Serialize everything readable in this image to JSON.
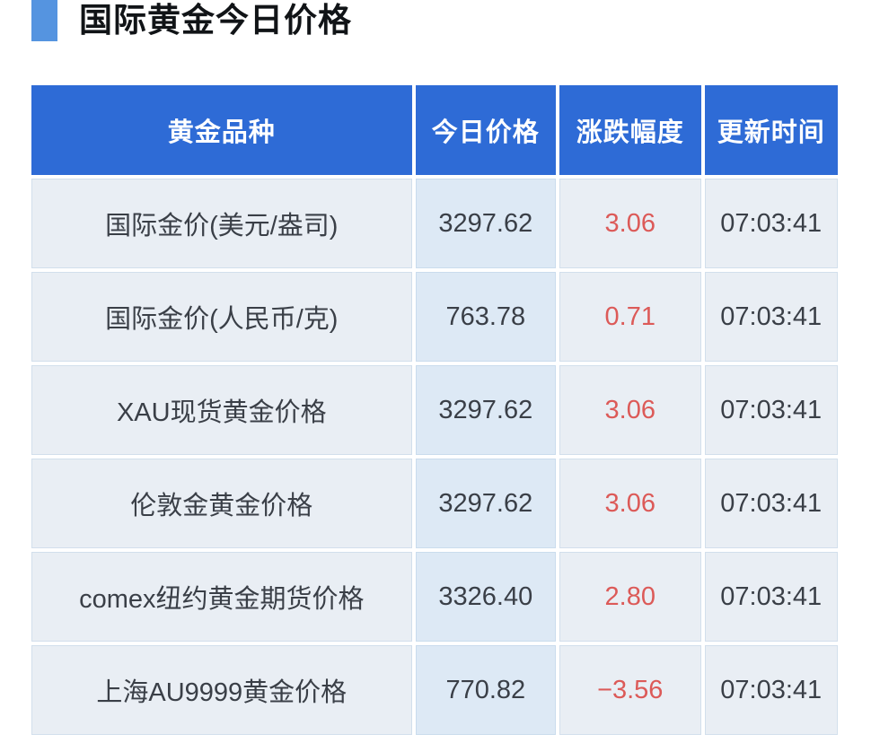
{
  "header": {
    "title": "国际黄金今日价格"
  },
  "colors": {
    "accent_bullet": "#5594e0",
    "table_header_bg": "#2e6bd6",
    "table_header_text": "#ffffff",
    "row_bg": "#e9eef4",
    "price_column_bg": "#dde9f5",
    "change_text": "#dc5a58",
    "body_text": "#3a3f47"
  },
  "table": {
    "columns": [
      "黄金品种",
      "今日价格",
      "涨跌幅度",
      "更新时间"
    ],
    "rows": [
      {
        "variety": "国际金价(美元/盎司)",
        "price": "3297.62",
        "change": "3.06",
        "time": "07:03:41"
      },
      {
        "variety": "国际金价(人民币/克)",
        "price": "763.78",
        "change": "0.71",
        "time": "07:03:41"
      },
      {
        "variety": "XAU现货黄金价格",
        "price": "3297.62",
        "change": "3.06",
        "time": "07:03:41"
      },
      {
        "variety": "伦敦金黄金价格",
        "price": "3297.62",
        "change": "3.06",
        "time": "07:03:41"
      },
      {
        "variety": "comex纽约黄金期货价格",
        "price": "3326.40",
        "change": "2.80",
        "time": "07:03:41"
      },
      {
        "variety": "上海AU9999黄金价格",
        "price": "770.82",
        "change": "−3.56",
        "time": "07:03:41"
      }
    ]
  },
  "chart_data": {
    "type": "table",
    "title": "国际黄金今日价格",
    "columns": [
      "黄金品种",
      "今日价格",
      "涨跌幅度",
      "更新时间"
    ],
    "rows": [
      [
        "国际金价(美元/盎司)",
        3297.62,
        3.06,
        "07:03:41"
      ],
      [
        "国际金价(人民币/克)",
        763.78,
        0.71,
        "07:03:41"
      ],
      [
        "XAU现货黄金价格",
        3297.62,
        3.06,
        "07:03:41"
      ],
      [
        "伦敦金黄金价格",
        3297.62,
        3.06,
        "07:03:41"
      ],
      [
        "comex纽约黄金期货价格",
        3326.4,
        2.8,
        "07:03:41"
      ],
      [
        "上海AU9999黄金价格",
        770.82,
        -3.56,
        "07:03:41"
      ]
    ],
    "notes": "positive and negative changes both rendered in red; all timestamps identical"
  }
}
